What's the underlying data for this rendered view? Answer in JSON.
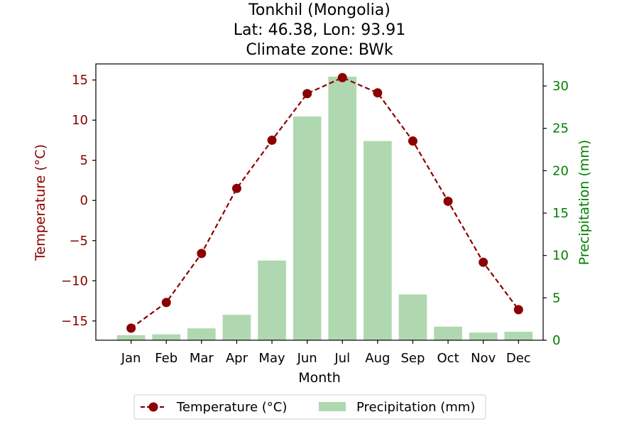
{
  "chart_data": {
    "type": "bar+line",
    "title_lines": [
      "Tonkhil (Mongolia)",
      "Lat: 46.38, Lon: 93.91",
      "Climate zone: BWk"
    ],
    "xlabel": "Month",
    "ylabel_left": "Temperature (°C)",
    "ylabel_right": "Precipitation (mm)",
    "categories": [
      "Jan",
      "Feb",
      "Mar",
      "Apr",
      "May",
      "Jun",
      "Jul",
      "Aug",
      "Sep",
      "Oct",
      "Nov",
      "Dec"
    ],
    "series": [
      {
        "name": "Temperature (°C)",
        "type": "line",
        "axis": "left",
        "color": "#8b0000",
        "values": [
          -15.9,
          -12.7,
          -6.6,
          1.5,
          7.5,
          13.3,
          15.3,
          13.4,
          7.4,
          -0.1,
          -7.7,
          -13.6
        ]
      },
      {
        "name": "Precipitation (mm)",
        "type": "bar",
        "axis": "right",
        "color": "#b0d8b0",
        "values": [
          0.6,
          0.7,
          1.4,
          3.0,
          9.4,
          26.4,
          31.1,
          23.5,
          5.4,
          1.6,
          0.9,
          1.0
        ]
      }
    ],
    "ylim_left": [
      -17.4,
      17.0
    ],
    "ylim_right": [
      0,
      32.6
    ],
    "yticks_left": [
      "15",
      "10",
      "5",
      "0",
      "−5",
      "−10",
      "−15"
    ],
    "yticks_left_values": [
      15,
      10,
      5,
      0,
      -5,
      -10,
      -15
    ],
    "yticks_right": [
      "0",
      "5",
      "10",
      "15",
      "20",
      "25",
      "30"
    ],
    "yticks_right_values": [
      0,
      5,
      10,
      15,
      20,
      25,
      30
    ],
    "left_axis_color": "#8b0000",
    "right_axis_color": "#008000",
    "legend_position": "bottom-center",
    "grid": false
  }
}
